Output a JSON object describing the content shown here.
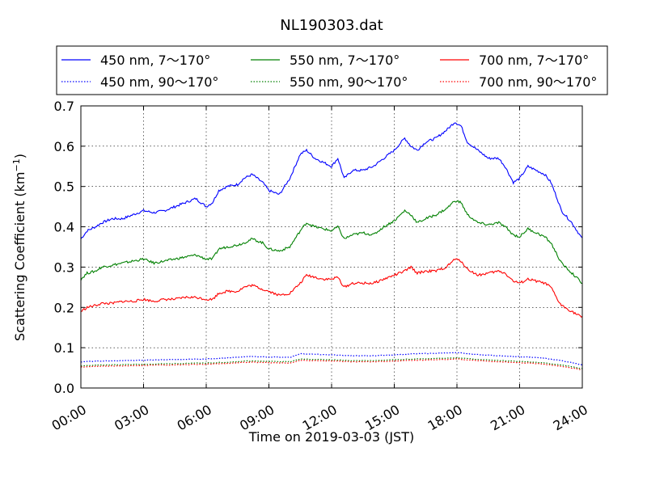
{
  "chart_data": {
    "type": "line",
    "title": "NL190303.dat",
    "xlabel": "Time on 2019-03-03 (JST)",
    "ylabel_main": "Scattering Coefficient (km",
    "ylabel_sup": "−1",
    "ylabel_close": ")",
    "xlim": [
      0,
      24
    ],
    "ylim": [
      0,
      0.7
    ],
    "grid": true,
    "legend_position": "top",
    "x_ticks": [
      0,
      3,
      6,
      9,
      12,
      15,
      18,
      21,
      24
    ],
    "x_tick_labels": [
      "00:00",
      "03:00",
      "06:00",
      "09:00",
      "12:00",
      "15:00",
      "18:00",
      "21:00",
      "24:00"
    ],
    "y_ticks": [
      0,
      0.1,
      0.2,
      0.3,
      0.4,
      0.5,
      0.6,
      0.7
    ],
    "y_tick_labels": [
      "0.0",
      "0.1",
      "0.2",
      "0.3",
      "0.4",
      "0.5",
      "0.6",
      "0.7"
    ],
    "series": [
      {
        "name": "450 nm, 7～170°",
        "color": "#0000ff",
        "dashed": false,
        "x": [
          0,
          0.3,
          0.7,
          1,
          1.5,
          2,
          2.5,
          3,
          3.5,
          4,
          4.5,
          5,
          5.5,
          6,
          6.3,
          6.6,
          7,
          7.5,
          7.8,
          8.2,
          8.7,
          9,
          9.5,
          10,
          10.5,
          10.8,
          11.2,
          11.6,
          12,
          12.3,
          12.6,
          13,
          13.5,
          14,
          14.5,
          15,
          15.5,
          15.8,
          16.1,
          16.5,
          17,
          17.5,
          17.9,
          18.2,
          18.5,
          19,
          19.5,
          20,
          20.3,
          20.7,
          21,
          21.4,
          21.8,
          22.2,
          22.5,
          22.8,
          23,
          23.5,
          24
        ],
        "y": [
          0.37,
          0.39,
          0.4,
          0.41,
          0.42,
          0.42,
          0.43,
          0.44,
          0.435,
          0.44,
          0.45,
          0.46,
          0.47,
          0.45,
          0.46,
          0.49,
          0.5,
          0.505,
          0.52,
          0.53,
          0.51,
          0.49,
          0.48,
          0.52,
          0.58,
          0.59,
          0.57,
          0.56,
          0.55,
          0.57,
          0.52,
          0.54,
          0.54,
          0.55,
          0.57,
          0.59,
          0.62,
          0.6,
          0.59,
          0.61,
          0.62,
          0.64,
          0.66,
          0.65,
          0.61,
          0.59,
          0.57,
          0.57,
          0.55,
          0.51,
          0.52,
          0.55,
          0.54,
          0.53,
          0.51,
          0.47,
          0.44,
          0.41,
          0.37
        ]
      },
      {
        "name": "550 nm, 7～170°",
        "color": "#008000",
        "dashed": false,
        "x": [
          0,
          0.3,
          0.7,
          1,
          1.5,
          2,
          2.5,
          3,
          3.5,
          4,
          4.5,
          5,
          5.5,
          6,
          6.3,
          6.6,
          7,
          7.5,
          7.8,
          8.2,
          8.7,
          9,
          9.5,
          10,
          10.5,
          10.8,
          11.2,
          11.6,
          12,
          12.3,
          12.6,
          13,
          13.5,
          14,
          14.5,
          15,
          15.5,
          15.8,
          16.1,
          16.5,
          17,
          17.5,
          17.9,
          18.2,
          18.5,
          19,
          19.5,
          20,
          20.3,
          20.7,
          21,
          21.4,
          21.8,
          22.2,
          22.5,
          22.8,
          23,
          23.5,
          24
        ],
        "y": [
          0.27,
          0.285,
          0.29,
          0.3,
          0.305,
          0.31,
          0.315,
          0.32,
          0.31,
          0.315,
          0.32,
          0.325,
          0.33,
          0.32,
          0.32,
          0.345,
          0.35,
          0.355,
          0.36,
          0.37,
          0.36,
          0.345,
          0.34,
          0.35,
          0.39,
          0.41,
          0.4,
          0.395,
          0.39,
          0.4,
          0.37,
          0.38,
          0.385,
          0.38,
          0.4,
          0.415,
          0.44,
          0.43,
          0.41,
          0.42,
          0.43,
          0.445,
          0.465,
          0.46,
          0.43,
          0.41,
          0.405,
          0.41,
          0.4,
          0.38,
          0.375,
          0.395,
          0.385,
          0.375,
          0.36,
          0.33,
          0.31,
          0.285,
          0.26
        ]
      },
      {
        "name": "700 nm, 7～170°",
        "color": "#ff0000",
        "dashed": false,
        "x": [
          0,
          0.3,
          0.7,
          1,
          1.5,
          2,
          2.5,
          3,
          3.5,
          4,
          4.5,
          5,
          5.5,
          6,
          6.3,
          6.6,
          7,
          7.5,
          7.8,
          8.2,
          8.7,
          9,
          9.5,
          10,
          10.5,
          10.8,
          11.2,
          11.6,
          12,
          12.3,
          12.6,
          13,
          13.5,
          14,
          14.5,
          15,
          15.5,
          15.8,
          16.1,
          16.5,
          17,
          17.5,
          17.9,
          18.2,
          18.5,
          19,
          19.5,
          20,
          20.3,
          20.7,
          21,
          21.4,
          21.8,
          22.2,
          22.5,
          22.8,
          23,
          23.5,
          24
        ],
        "y": [
          0.19,
          0.2,
          0.205,
          0.21,
          0.21,
          0.215,
          0.215,
          0.22,
          0.215,
          0.22,
          0.22,
          0.225,
          0.225,
          0.22,
          0.22,
          0.235,
          0.24,
          0.24,
          0.25,
          0.255,
          0.245,
          0.24,
          0.23,
          0.235,
          0.26,
          0.28,
          0.275,
          0.27,
          0.27,
          0.275,
          0.25,
          0.26,
          0.26,
          0.26,
          0.27,
          0.28,
          0.29,
          0.3,
          0.285,
          0.29,
          0.29,
          0.3,
          0.32,
          0.315,
          0.295,
          0.28,
          0.285,
          0.29,
          0.285,
          0.265,
          0.26,
          0.27,
          0.265,
          0.26,
          0.25,
          0.22,
          0.205,
          0.19,
          0.175
        ]
      },
      {
        "name": "450 nm, 90～170°",
        "color": "#0000ff",
        "dashed": true,
        "x": [
          0,
          1,
          2,
          3,
          4,
          5,
          6,
          7,
          8,
          9,
          10,
          10.5,
          11,
          12,
          13,
          14,
          15,
          16,
          17,
          18,
          19,
          20,
          21,
          22,
          23,
          24
        ],
        "y": [
          0.065,
          0.067,
          0.068,
          0.069,
          0.07,
          0.071,
          0.072,
          0.075,
          0.078,
          0.077,
          0.076,
          0.085,
          0.084,
          0.082,
          0.08,
          0.08,
          0.082,
          0.085,
          0.086,
          0.088,
          0.083,
          0.08,
          0.078,
          0.075,
          0.068,
          0.057
        ]
      },
      {
        "name": "550 nm, 90～170°",
        "color": "#008000",
        "dashed": true,
        "x": [
          0,
          1,
          2,
          3,
          4,
          5,
          6,
          7,
          8,
          9,
          10,
          10.5,
          11,
          12,
          13,
          14,
          15,
          16,
          17,
          18,
          19,
          20,
          21,
          22,
          23,
          24
        ],
        "y": [
          0.055,
          0.057,
          0.058,
          0.059,
          0.06,
          0.061,
          0.062,
          0.064,
          0.067,
          0.066,
          0.065,
          0.072,
          0.071,
          0.07,
          0.068,
          0.068,
          0.07,
          0.072,
          0.073,
          0.075,
          0.071,
          0.068,
          0.066,
          0.063,
          0.057,
          0.048
        ]
      },
      {
        "name": "700 nm, 90～170°",
        "color": "#ff0000",
        "dashed": true,
        "x": [
          0,
          1,
          2,
          3,
          4,
          5,
          6,
          7,
          8,
          9,
          10,
          10.5,
          11,
          12,
          13,
          14,
          15,
          16,
          17,
          18,
          19,
          20,
          21,
          22,
          23,
          24
        ],
        "y": [
          0.052,
          0.054,
          0.055,
          0.056,
          0.057,
          0.058,
          0.059,
          0.061,
          0.064,
          0.063,
          0.062,
          0.069,
          0.068,
          0.067,
          0.065,
          0.065,
          0.067,
          0.069,
          0.07,
          0.072,
          0.068,
          0.065,
          0.063,
          0.06,
          0.054,
          0.045
        ]
      }
    ]
  }
}
